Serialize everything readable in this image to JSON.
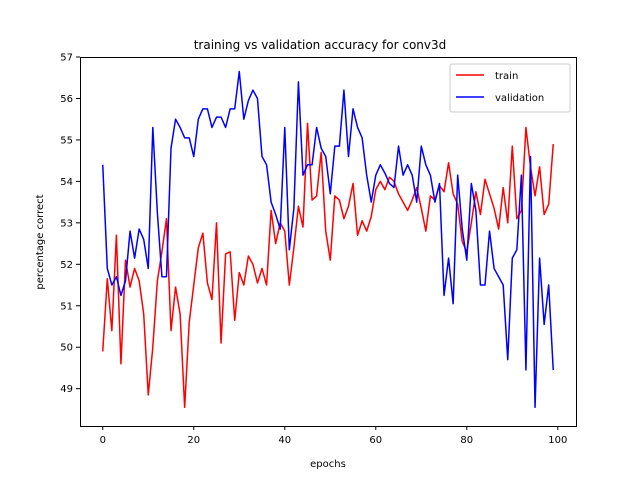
{
  "chart_data": {
    "type": "line",
    "title": "training vs validation accuracy for conv3d",
    "xlabel": "epochs",
    "ylabel": "percentage correct",
    "xlim": [
      -5,
      104
    ],
    "ylim": [
      48.1,
      57.0
    ],
    "xticks": [
      0,
      20,
      40,
      60,
      80,
      100
    ],
    "yticks": [
      49,
      50,
      51,
      52,
      53,
      54,
      55,
      56,
      57
    ],
    "grid": false,
    "legend_position": "top-right",
    "x": [
      0,
      1,
      2,
      3,
      4,
      5,
      6,
      7,
      8,
      9,
      10,
      11,
      12,
      13,
      14,
      15,
      16,
      17,
      18,
      19,
      20,
      21,
      22,
      23,
      24,
      25,
      26,
      27,
      28,
      29,
      30,
      31,
      32,
      33,
      34,
      35,
      36,
      37,
      38,
      39,
      40,
      41,
      42,
      43,
      44,
      45,
      46,
      47,
      48,
      49,
      50,
      51,
      52,
      53,
      54,
      55,
      56,
      57,
      58,
      59,
      60,
      61,
      62,
      63,
      64,
      65,
      66,
      67,
      68,
      69,
      70,
      71,
      72,
      73,
      74,
      75,
      76,
      77,
      78,
      79,
      80,
      81,
      82,
      83,
      84,
      85,
      86,
      87,
      88,
      89,
      90,
      91,
      92,
      93,
      94,
      95,
      96,
      97,
      98,
      99
    ],
    "series": [
      {
        "name": "train",
        "color": "#ff0000",
        "values": [
          49.9,
          51.65,
          50.4,
          52.7,
          49.6,
          52.1,
          51.45,
          51.9,
          51.6,
          50.8,
          48.85,
          50.0,
          51.6,
          52.3,
          53.1,
          50.4,
          51.45,
          50.8,
          48.55,
          50.6,
          51.5,
          52.4,
          52.75,
          51.55,
          51.15,
          53.0,
          50.1,
          52.25,
          52.3,
          50.65,
          51.8,
          51.5,
          52.2,
          52.0,
          51.55,
          51.9,
          51.5,
          53.3,
          52.5,
          53.0,
          52.8,
          51.5,
          52.4,
          53.4,
          52.9,
          55.4,
          53.55,
          53.65,
          54.7,
          52.8,
          52.1,
          53.65,
          53.55,
          53.1,
          53.4,
          53.95,
          52.7,
          53.05,
          52.8,
          53.15,
          53.8,
          54.0,
          53.8,
          54.1,
          54.0,
          53.7,
          53.5,
          53.3,
          53.55,
          53.85,
          53.35,
          52.8,
          53.65,
          53.55,
          53.9,
          53.75,
          54.45,
          53.7,
          53.45,
          52.55,
          52.3,
          53.0,
          53.75,
          53.2,
          54.05,
          53.7,
          53.35,
          52.85,
          53.85,
          53.0,
          54.85,
          53.1,
          53.3,
          55.3,
          54.35,
          53.65,
          54.35,
          53.2,
          53.45,
          54.9
        ]
      },
      {
        "name": "validation",
        "color": "#0000ff",
        "values": [
          54.4,
          51.9,
          51.5,
          51.7,
          51.25,
          51.6,
          52.8,
          52.15,
          52.85,
          52.6,
          51.9,
          55.3,
          53.25,
          51.7,
          51.7,
          54.8,
          55.5,
          55.3,
          55.05,
          55.05,
          54.6,
          55.5,
          55.75,
          55.75,
          55.3,
          55.55,
          55.55,
          55.3,
          55.75,
          55.75,
          56.65,
          55.5,
          55.95,
          56.2,
          56.0,
          54.6,
          54.4,
          53.5,
          53.2,
          52.85,
          55.3,
          52.35,
          53.35,
          56.4,
          54.15,
          54.4,
          54.4,
          55.3,
          54.8,
          54.6,
          53.7,
          54.85,
          54.85,
          56.2,
          54.6,
          55.75,
          55.3,
          55.05,
          54.15,
          53.5,
          54.15,
          54.4,
          54.2,
          53.95,
          53.85,
          54.85,
          54.15,
          54.4,
          54.15,
          53.5,
          54.85,
          54.4,
          54.15,
          53.5,
          53.95,
          51.25,
          52.15,
          51.05,
          54.15,
          52.85,
          52.1,
          53.95,
          53.3,
          51.5,
          51.5,
          52.8,
          51.9,
          51.7,
          51.5,
          49.7,
          52.15,
          52.35,
          54.15,
          49.45,
          54.6,
          48.55,
          52.15,
          50.55,
          51.5,
          49.45
        ]
      }
    ]
  }
}
